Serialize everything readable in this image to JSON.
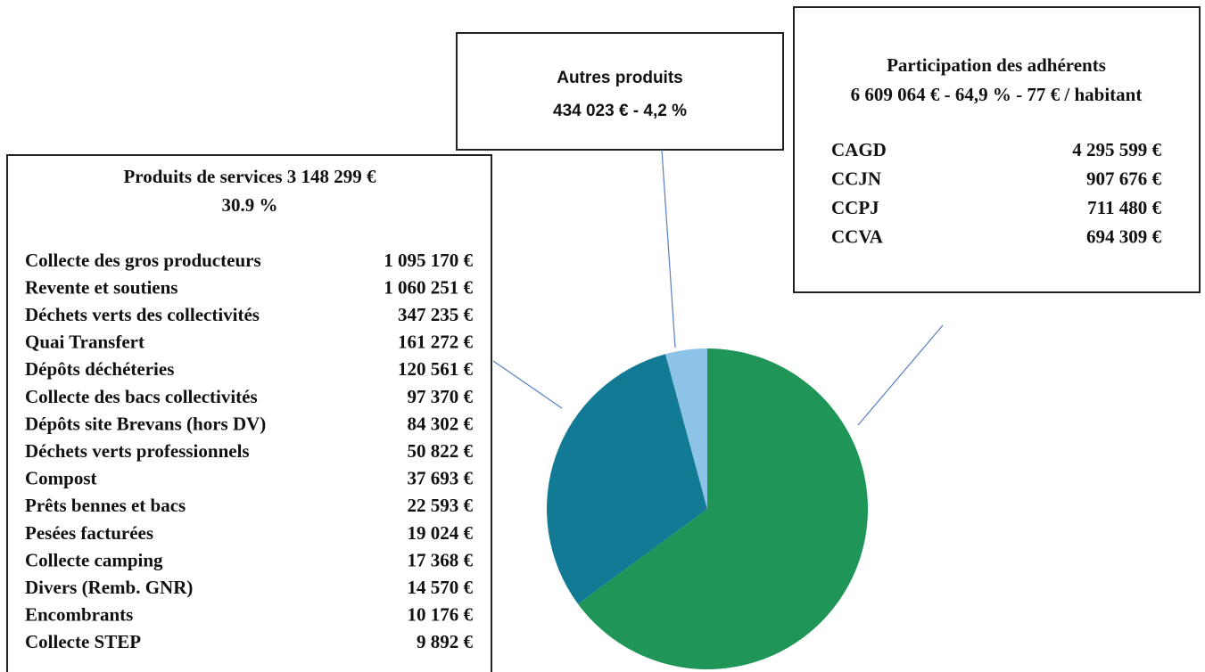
{
  "chart_data": {
    "type": "pie",
    "values": [
      64.9,
      30.9,
      4.2
    ],
    "colors": [
      "#1f9658",
      "#127a95",
      "#8ec3e8"
    ],
    "annotations": [
      {
        "lines": [
          "Participation des adhérents",
          "6 609 064 € - 64,9 % - 77 € / habitant"
        ],
        "rows": [
          [
            "CAGD",
            "4 295 599 €"
          ],
          [
            "CCJN",
            "907 676 €"
          ],
          [
            "CCPJ",
            "711 480 €"
          ],
          [
            "CCVA",
            "694 309 €"
          ]
        ]
      },
      {
        "lines": [
          "Produits de services 3 148 299 €",
          "30.9 %"
        ],
        "rows": [
          [
            "Collecte des gros producteurs",
            "1 095 170 €"
          ],
          [
            "Revente et soutiens",
            "1 060 251 €"
          ],
          [
            "Déchets verts des collectivités",
            "347 235 €"
          ],
          [
            "Quai Transfert",
            "161 272 €"
          ],
          [
            "Dépôts déchéteries",
            "120 561 €"
          ],
          [
            "Collecte des bacs collectivités",
            "97 370 €"
          ],
          [
            "Dépôts site Brevans (hors DV)",
            "84 302 €"
          ],
          [
            "Déchets verts professionnels",
            "50 822 €"
          ],
          [
            "Compost",
            "37 693 €"
          ],
          [
            "Prêts bennes et bacs",
            "22 593 €"
          ],
          [
            "Pesées facturées",
            "19 024 €"
          ],
          [
            "Collecte camping",
            "17 368 €"
          ],
          [
            "Divers (Remb. GNR)",
            "14 570 €"
          ],
          [
            "Encombrants",
            "10 176 €"
          ],
          [
            "Collecte STEP",
            "9 892 €"
          ]
        ]
      },
      {
        "lines": [
          "Autres produits",
          "434 023 € - 4,2 %"
        ],
        "rows": []
      }
    ]
  }
}
